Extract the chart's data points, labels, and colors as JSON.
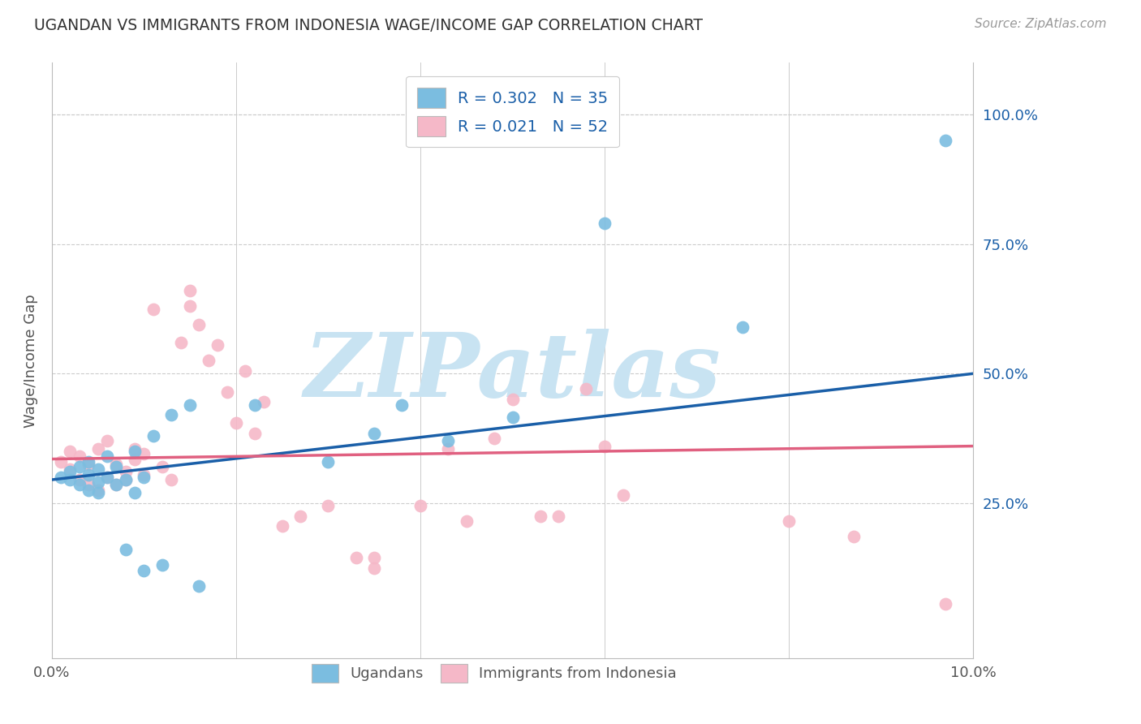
{
  "title": "UGANDAN VS IMMIGRANTS FROM INDONESIA WAGE/INCOME GAP CORRELATION CHART",
  "source": "Source: ZipAtlas.com",
  "ylabel": "Wage/Income Gap",
  "xlim": [
    0.0,
    0.1
  ],
  "ylim": [
    -0.05,
    1.1
  ],
  "yticks": [
    0.25,
    0.5,
    0.75,
    1.0
  ],
  "ytick_labels": [
    "25.0%",
    "50.0%",
    "75.0%",
    "100.0%"
  ],
  "xticks": [
    0.0,
    0.02,
    0.04,
    0.06,
    0.08,
    0.1
  ],
  "xtick_labels": [
    "0.0%",
    "",
    "",
    "",
    "",
    "10.0%"
  ],
  "blue_color": "#7bbde0",
  "pink_color": "#f5b8c8",
  "blue_line_color": "#1a5fa8",
  "pink_line_color": "#e06080",
  "blue_scatter_x": [
    0.001,
    0.002,
    0.002,
    0.003,
    0.003,
    0.004,
    0.004,
    0.004,
    0.005,
    0.005,
    0.005,
    0.006,
    0.006,
    0.007,
    0.007,
    0.008,
    0.008,
    0.009,
    0.009,
    0.01,
    0.01,
    0.011,
    0.012,
    0.013,
    0.015,
    0.016,
    0.022,
    0.03,
    0.035,
    0.038,
    0.043,
    0.05,
    0.06,
    0.075,
    0.097
  ],
  "blue_scatter_y": [
    0.3,
    0.295,
    0.31,
    0.285,
    0.32,
    0.275,
    0.305,
    0.33,
    0.29,
    0.315,
    0.27,
    0.3,
    0.34,
    0.285,
    0.32,
    0.16,
    0.295,
    0.35,
    0.27,
    0.3,
    0.12,
    0.38,
    0.13,
    0.42,
    0.44,
    0.09,
    0.44,
    0.33,
    0.385,
    0.44,
    0.37,
    0.415,
    0.79,
    0.59,
    0.95
  ],
  "pink_scatter_x": [
    0.001,
    0.002,
    0.002,
    0.003,
    0.003,
    0.004,
    0.004,
    0.005,
    0.005,
    0.006,
    0.006,
    0.007,
    0.007,
    0.008,
    0.008,
    0.009,
    0.009,
    0.01,
    0.01,
    0.011,
    0.012,
    0.013,
    0.014,
    0.015,
    0.015,
    0.016,
    0.017,
    0.018,
    0.019,
    0.02,
    0.021,
    0.022,
    0.023,
    0.025,
    0.027,
    0.03,
    0.033,
    0.035,
    0.035,
    0.04,
    0.043,
    0.045,
    0.048,
    0.05,
    0.053,
    0.055,
    0.058,
    0.06,
    0.062,
    0.08,
    0.087,
    0.097
  ],
  "pink_scatter_y": [
    0.33,
    0.315,
    0.35,
    0.295,
    0.34,
    0.285,
    0.325,
    0.275,
    0.355,
    0.3,
    0.37,
    0.285,
    0.325,
    0.31,
    0.295,
    0.335,
    0.355,
    0.305,
    0.345,
    0.625,
    0.32,
    0.295,
    0.56,
    0.63,
    0.66,
    0.595,
    0.525,
    0.555,
    0.465,
    0.405,
    0.505,
    0.385,
    0.445,
    0.205,
    0.225,
    0.245,
    0.145,
    0.125,
    0.145,
    0.245,
    0.355,
    0.215,
    0.375,
    0.45,
    0.225,
    0.225,
    0.47,
    0.36,
    0.265,
    0.215,
    0.185,
    0.055
  ],
  "blue_line_x0": 0.0,
  "blue_line_x1": 0.1,
  "blue_line_y0": 0.295,
  "blue_line_y1": 0.5,
  "pink_line_x0": 0.0,
  "pink_line_x1": 0.1,
  "pink_line_y0": 0.335,
  "pink_line_y1": 0.36,
  "watermark": "ZIPatlas",
  "watermark_color": "#c8e3f2",
  "background_color": "#ffffff",
  "grid_color": "#cccccc",
  "legend_r1_label": "R = 0.302   N = 35",
  "legend_r2_label": "R = 0.021   N = 52"
}
